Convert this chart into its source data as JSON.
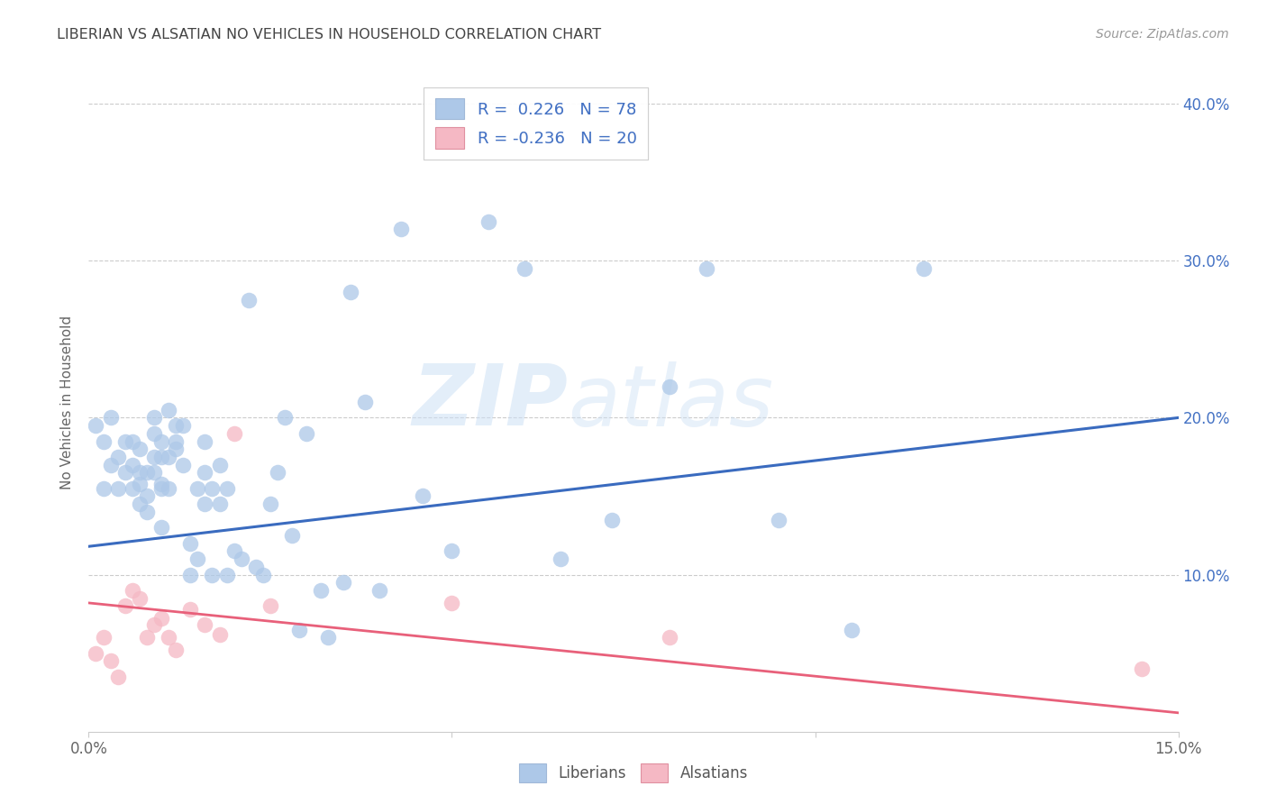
{
  "title": "LIBERIAN VS ALSATIAN NO VEHICLES IN HOUSEHOLD CORRELATION CHART",
  "source": "Source: ZipAtlas.com",
  "ylabel": "No Vehicles in Household",
  "xlim": [
    0.0,
    0.15
  ],
  "ylim": [
    0.0,
    0.42
  ],
  "xticks": [
    0.0,
    0.05,
    0.1,
    0.15
  ],
  "xtick_labels": [
    "0.0%",
    "",
    "",
    "15.0%"
  ],
  "yticks_right": [
    0.1,
    0.2,
    0.3,
    0.4
  ],
  "ytick_labels_right": [
    "10.0%",
    "20.0%",
    "30.0%",
    "40.0%"
  ],
  "liberian_R": 0.226,
  "liberian_N": 78,
  "alsatian_R": -0.236,
  "alsatian_N": 20,
  "liberian_color": "#adc8e8",
  "alsatian_color": "#f5b8c4",
  "liberian_line_color": "#3a6bbf",
  "alsatian_line_color": "#e8607a",
  "liberian_scatter_x": [
    0.001,
    0.002,
    0.002,
    0.003,
    0.003,
    0.004,
    0.004,
    0.005,
    0.005,
    0.006,
    0.006,
    0.006,
    0.007,
    0.007,
    0.007,
    0.007,
    0.008,
    0.008,
    0.008,
    0.009,
    0.009,
    0.009,
    0.009,
    0.01,
    0.01,
    0.01,
    0.01,
    0.01,
    0.011,
    0.011,
    0.011,
    0.012,
    0.012,
    0.012,
    0.013,
    0.013,
    0.014,
    0.014,
    0.015,
    0.015,
    0.016,
    0.016,
    0.016,
    0.017,
    0.017,
    0.018,
    0.018,
    0.019,
    0.019,
    0.02,
    0.021,
    0.022,
    0.023,
    0.024,
    0.025,
    0.026,
    0.027,
    0.028,
    0.029,
    0.03,
    0.032,
    0.033,
    0.035,
    0.036,
    0.038,
    0.04,
    0.043,
    0.046,
    0.05,
    0.055,
    0.06,
    0.065,
    0.072,
    0.08,
    0.085,
    0.095,
    0.105,
    0.115
  ],
  "liberian_scatter_y": [
    0.195,
    0.155,
    0.185,
    0.17,
    0.2,
    0.155,
    0.175,
    0.165,
    0.185,
    0.155,
    0.17,
    0.185,
    0.145,
    0.158,
    0.165,
    0.18,
    0.15,
    0.14,
    0.165,
    0.175,
    0.19,
    0.2,
    0.165,
    0.13,
    0.158,
    0.175,
    0.185,
    0.155,
    0.155,
    0.175,
    0.205,
    0.18,
    0.195,
    0.185,
    0.17,
    0.195,
    0.1,
    0.12,
    0.11,
    0.155,
    0.145,
    0.165,
    0.185,
    0.1,
    0.155,
    0.145,
    0.17,
    0.1,
    0.155,
    0.115,
    0.11,
    0.275,
    0.105,
    0.1,
    0.145,
    0.165,
    0.2,
    0.125,
    0.065,
    0.19,
    0.09,
    0.06,
    0.095,
    0.28,
    0.21,
    0.09,
    0.32,
    0.15,
    0.115,
    0.325,
    0.295,
    0.11,
    0.135,
    0.22,
    0.295,
    0.135,
    0.065,
    0.295
  ],
  "alsatian_scatter_x": [
    0.001,
    0.002,
    0.003,
    0.004,
    0.005,
    0.006,
    0.007,
    0.008,
    0.009,
    0.01,
    0.011,
    0.012,
    0.014,
    0.016,
    0.018,
    0.02,
    0.025,
    0.05,
    0.08,
    0.145
  ],
  "alsatian_scatter_y": [
    0.05,
    0.06,
    0.045,
    0.035,
    0.08,
    0.09,
    0.085,
    0.06,
    0.068,
    0.072,
    0.06,
    0.052,
    0.078,
    0.068,
    0.062,
    0.19,
    0.08,
    0.082,
    0.06,
    0.04
  ],
  "liberian_line_x": [
    0.0,
    0.15
  ],
  "liberian_line_y": [
    0.118,
    0.2
  ],
  "alsatian_line_x": [
    0.0,
    0.15
  ],
  "alsatian_line_y": [
    0.082,
    0.012
  ],
  "watermark_zip": "ZIP",
  "watermark_atlas": "atlas",
  "background_color": "#ffffff",
  "grid_color": "#cccccc",
  "title_color": "#444444",
  "source_color": "#999999",
  "ylabel_color": "#666666",
  "tick_color": "#666666",
  "right_tick_color": "#4472c4",
  "legend_label_color": "#4472c4"
}
